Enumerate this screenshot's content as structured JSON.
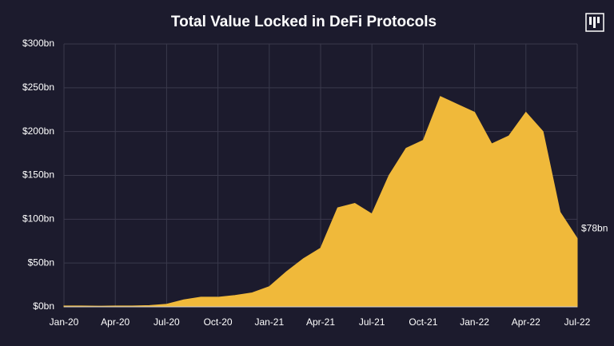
{
  "chart_data": {
    "type": "area",
    "title": "Total Value Locked in DeFi Protocols",
    "x": [
      "2020-01",
      "2020-02",
      "2020-03",
      "2020-04",
      "2020-05",
      "2020-06",
      "2020-07",
      "2020-08",
      "2020-09",
      "2020-10",
      "2020-11",
      "2020-12",
      "2021-01",
      "2021-02",
      "2021-03",
      "2021-04",
      "2021-05",
      "2021-06",
      "2021-07",
      "2021-08",
      "2021-09",
      "2021-10",
      "2021-11",
      "2021-12",
      "2022-01",
      "2022-02",
      "2022-03",
      "2022-04",
      "2022-05",
      "2022-06",
      "2022-07"
    ],
    "values": [
      1,
      1,
      0.8,
      1,
      1,
      1.5,
      3,
      8,
      11,
      11,
      13,
      16,
      23,
      40,
      55,
      67,
      113,
      118,
      106,
      150,
      181,
      190,
      240,
      231,
      222,
      186,
      195,
      222,
      200,
      108,
      78
    ],
    "color": "#f0b93a",
    "annotation": "$78bn",
    "ylim": [
      0,
      300
    ],
    "yticks": [
      {
        "value": 0,
        "label": "$0bn"
      },
      {
        "value": 50,
        "label": "$50bn"
      },
      {
        "value": 100,
        "label": "$100bn"
      },
      {
        "value": 150,
        "label": "$150bn"
      },
      {
        "value": 200,
        "label": "$200bn"
      },
      {
        "value": 250,
        "label": "$250bn"
      },
      {
        "value": 300,
        "label": "$300bn"
      }
    ],
    "xticks": [
      {
        "value": "2020-01",
        "label": "Jan-20"
      },
      {
        "value": "2020-04",
        "label": "Apr-20"
      },
      {
        "value": "2020-07",
        "label": "Jul-20"
      },
      {
        "value": "2020-10",
        "label": "Oct-20"
      },
      {
        "value": "2021-01",
        "label": "Jan-21"
      },
      {
        "value": "2021-04",
        "label": "Apr-21"
      },
      {
        "value": "2021-07",
        "label": "Jul-21"
      },
      {
        "value": "2021-10",
        "label": "Oct-21"
      },
      {
        "value": "2022-01",
        "label": "Jan-22"
      },
      {
        "value": "2022-04",
        "label": "Apr-22"
      },
      {
        "value": "2022-07",
        "label": "Jul-22"
      }
    ],
    "grid": true
  }
}
